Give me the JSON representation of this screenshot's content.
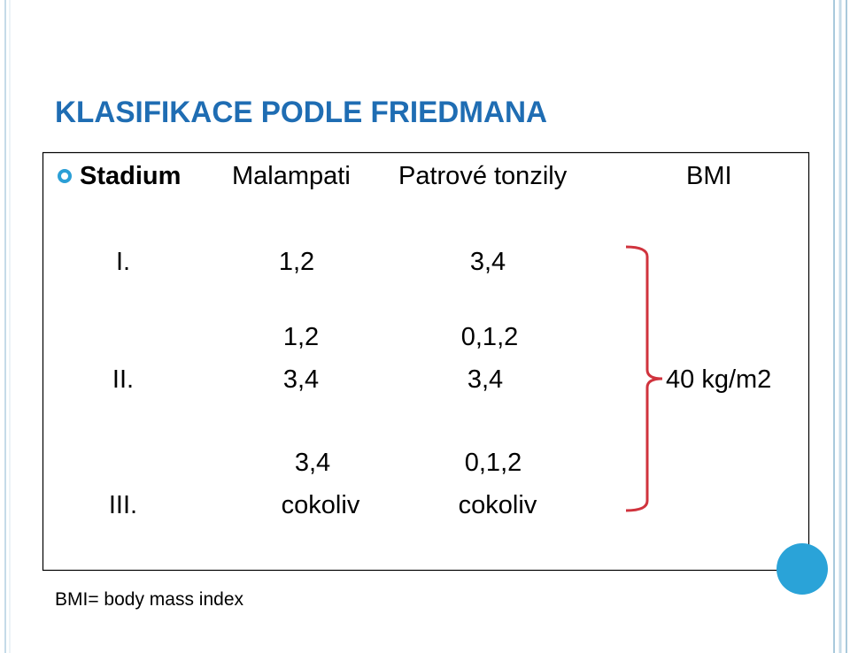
{
  "title": "KLASIFIKACE PODLE FRIEDMANA",
  "table": {
    "header": [
      "Stadium",
      "Malampati",
      "Patrové tonzily",
      "BMI"
    ],
    "rows": [
      {
        "stadium": "I.",
        "malampati": [
          "1,2"
        ],
        "tonzily": [
          "3,4"
        ]
      },
      {
        "stadium": "II.",
        "malampati": [
          "1,2",
          "3,4"
        ],
        "tonzily": [
          "0,1,2",
          "3,4"
        ]
      },
      {
        "stadium": "III.",
        "malampati": [
          "3,4",
          "cokoliv"
        ],
        "tonzily": [
          "0,1,2",
          "cokoliv"
        ]
      }
    ],
    "bmi": "40 kg/m2"
  },
  "footnote": "BMI= body mass index"
}
